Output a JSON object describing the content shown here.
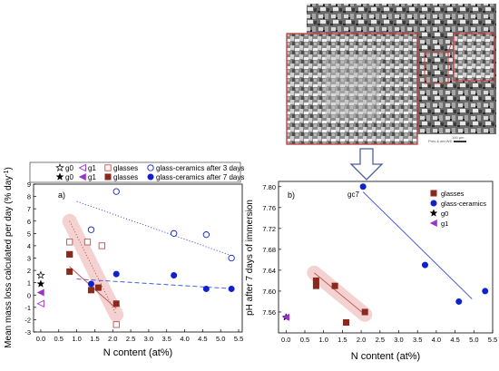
{
  "colors": {
    "glass": "#8b2a1c",
    "glass_open": "#c0504d",
    "glass_band": "#f2c4c4",
    "glassceramic": "#1020d0",
    "glassceramic_line": "#3b4bd8",
    "g1": "#9933cc",
    "g0": "#000000",
    "sem_frame": "#c23b3b",
    "arrow": "#4a5f9a"
  },
  "legend_top": {
    "row1": {
      "g0_label": "g0",
      "g1_label": "g1",
      "glasses_label": "glasses",
      "gc_label": "glass-ceramics after 3 days"
    },
    "row2": {
      "g0_label": "g0",
      "g1_label": "g1",
      "glasses_label": "glasses",
      "gc_label": "glass-ceramics after 7 days"
    }
  },
  "micrograph": {
    "scalebar_text": "100 µm",
    "footer_left": "Mag",
    "footer_mid": "Pres  &  det  WD"
  },
  "chart_data": [
    {
      "id": "a",
      "type": "scatter",
      "panel_label": "a)",
      "xlabel": "N content (at%)",
      "ylabel": "Mean mass loss calculated per day (% day",
      "ylabel_sup": "-1",
      "ylabel_close": ")",
      "xlim": [
        -0.2,
        5.6
      ],
      "ylim": [
        -3,
        9
      ],
      "xticks": [
        "0.0",
        "0.5",
        "1.0",
        "1.5",
        "2.0",
        "2.5",
        "3.0",
        "3.5",
        "4.0",
        "4.5",
        "5.0",
        "5.5"
      ],
      "xtick_values": [
        0.0,
        0.5,
        1.0,
        1.5,
        2.0,
        2.5,
        3.0,
        3.5,
        4.0,
        4.5,
        5.0,
        5.5
      ],
      "yticks": [
        "-3",
        "-2",
        "-1",
        "0",
        "1",
        "2",
        "3",
        "4",
        "5",
        "6",
        "7",
        "8",
        "9"
      ],
      "ytick_values": [
        -3,
        -2,
        -1,
        0,
        1,
        2,
        3,
        4,
        5,
        6,
        7,
        8,
        9
      ],
      "series": [
        {
          "key": "glasses_3d",
          "marker": "square-open",
          "points": [
            [
              0.8,
              4.3
            ],
            [
              0.8,
              3.3
            ],
            [
              1.3,
              4.3
            ],
            [
              1.7,
              4.0
            ],
            [
              2.1,
              -2.4
            ]
          ]
        },
        {
          "key": "glasses_7d",
          "marker": "square-filled",
          "points": [
            [
              0.8,
              3.3
            ],
            [
              0.8,
              1.9
            ],
            [
              1.4,
              0.4
            ],
            [
              1.6,
              0.6
            ],
            [
              2.1,
              -0.7
            ]
          ]
        },
        {
          "key": "gc_3d",
          "marker": "circle-open",
          "points": [
            [
              1.4,
              5.3
            ],
            [
              2.1,
              8.4
            ],
            [
              3.7,
              5.0
            ],
            [
              4.6,
              4.9
            ],
            [
              5.3,
              3.0
            ]
          ]
        },
        {
          "key": "gc_7d",
          "marker": "circle-filled",
          "points": [
            [
              1.4,
              0.9
            ],
            [
              2.1,
              1.7
            ],
            [
              3.7,
              1.6
            ],
            [
              4.6,
              0.5
            ],
            [
              5.3,
              0.5
            ]
          ]
        },
        {
          "key": "g0_3d",
          "marker": "star-open",
          "points": [
            [
              0.0,
              1.6
            ]
          ]
        },
        {
          "key": "g0_7d",
          "marker": "star-filled",
          "points": [
            [
              0.0,
              0.9
            ]
          ]
        },
        {
          "key": "g1_3d",
          "marker": "triangle-open",
          "points": [
            [
              0.0,
              -0.7
            ]
          ]
        },
        {
          "key": "g1_7d",
          "marker": "triangle-filled",
          "points": [
            [
              0.0,
              0.2
            ]
          ]
        }
      ],
      "fits": [
        {
          "key": "gc_3d_fit",
          "style": "dotted",
          "from": [
            1.0,
            7.6
          ],
          "to": [
            5.4,
            3.1
          ]
        },
        {
          "key": "gc_7d_fit",
          "style": "dashed",
          "from": [
            1.0,
            1.3
          ],
          "to": [
            5.4,
            0.5
          ]
        },
        {
          "key": "glasses_3d_fit",
          "style": "dotted",
          "from": [
            0.8,
            6.0
          ],
          "to": [
            2.1,
            -1.6
          ]
        },
        {
          "key": "glasses_7d_fit",
          "style": "solid",
          "from": [
            0.8,
            2.3
          ],
          "to": [
            2.1,
            -1.1
          ]
        }
      ]
    },
    {
      "id": "b",
      "type": "scatter",
      "panel_label": "b)",
      "xlabel": "N content (at%)",
      "ylabel": "pH after 7 days of immersion",
      "xlim": [
        -0.2,
        5.5
      ],
      "ylim": [
        7.52,
        7.81
      ],
      "xticks": [
        "0.0",
        "0.5",
        "1.0",
        "1.5",
        "2.0",
        "2.5",
        "3.0",
        "3.5",
        "4.0",
        "4.5",
        "5.0",
        "5.5"
      ],
      "xtick_values": [
        0.0,
        0.5,
        1.0,
        1.5,
        2.0,
        2.5,
        3.0,
        3.5,
        4.0,
        4.5,
        5.0,
        5.5
      ],
      "yticks": [
        "7.56",
        "7.60",
        "7.64",
        "7.68",
        "7.72",
        "7.76",
        "7.80"
      ],
      "ytick_values": [
        7.56,
        7.6,
        7.64,
        7.68,
        7.72,
        7.76,
        7.8
      ],
      "annotation": {
        "text": "gc7",
        "x": 2.05,
        "y": 7.8
      },
      "legend": [
        {
          "key": "glasses",
          "label": "glasses",
          "marker": "square-filled"
        },
        {
          "key": "glass-ceramics",
          "label": "glass-ceramics",
          "marker": "circle-filled"
        },
        {
          "key": "g0",
          "label": "g0",
          "marker": "star-filled"
        },
        {
          "key": "g1",
          "label": "g1",
          "marker": "triangle-filled"
        }
      ],
      "series": [
        {
          "key": "glasses",
          "marker": "square-filled",
          "points": [
            [
              0.8,
              7.62
            ],
            [
              0.8,
              7.61
            ],
            [
              1.3,
              7.61
            ],
            [
              1.6,
              7.54
            ],
            [
              2.1,
              7.56
            ]
          ]
        },
        {
          "key": "glass-ceramics",
          "marker": "circle-filled",
          "points": [
            [
              2.05,
              7.8
            ],
            [
              3.7,
              7.65
            ],
            [
              4.6,
              7.58
            ],
            [
              5.3,
              7.6
            ]
          ]
        },
        {
          "key": "g0",
          "marker": "star-filled",
          "points": [
            [
              0.0,
              7.55
            ]
          ]
        },
        {
          "key": "g1",
          "marker": "triangle-filled",
          "points": [
            [
              0.0,
              7.55
            ]
          ]
        }
      ],
      "fits": [
        {
          "key": "gc_fit",
          "style": "solid",
          "from": [
            2.05,
            7.79
          ],
          "to": [
            4.95,
            7.585
          ]
        },
        {
          "key": "glasses_fit",
          "style": "solid",
          "from": [
            0.75,
            7.635
          ],
          "to": [
            2.1,
            7.555
          ]
        }
      ]
    }
  ]
}
